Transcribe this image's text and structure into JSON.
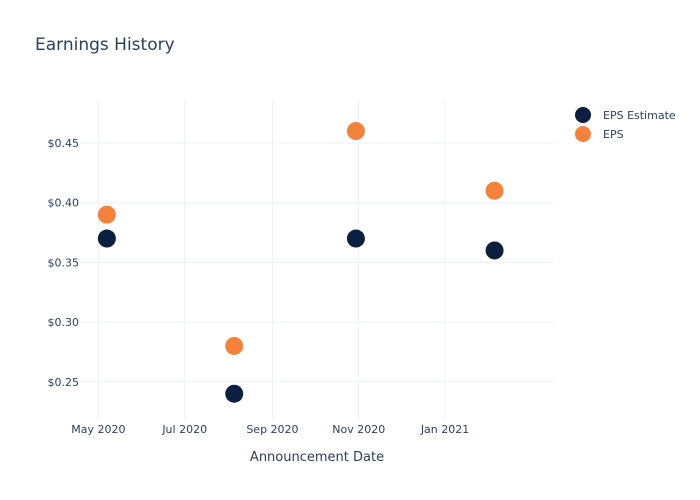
{
  "chart_data": {
    "type": "scatter",
    "title": "Earnings History",
    "xlabel": "Announcement Date",
    "ylabel": "",
    "x_type": "date",
    "x_ticks": [
      "2020-05-01",
      "2020-07-01",
      "2020-09-01",
      "2020-11-01",
      "2021-01-01"
    ],
    "x_tick_labels": [
      "May 2020",
      "Jul 2020",
      "Sep 2020",
      "Nov 2020",
      "Jan 2021"
    ],
    "xlim": [
      "2020-04-18",
      "2021-03-19"
    ],
    "y_ticks": [
      0.25,
      0.3,
      0.35,
      0.4,
      0.45
    ],
    "y_tick_labels": [
      "$0.25",
      "$0.30",
      "$0.35",
      "$0.40",
      "$0.45"
    ],
    "ylim": [
      0.218,
      0.486
    ],
    "grid": true,
    "legend_position": "top-right",
    "series": [
      {
        "name": "EPS Estimate",
        "color": "#0b1f3f",
        "points": [
          {
            "x": "2020-05-07",
            "y": 0.37
          },
          {
            "x": "2020-08-05",
            "y": 0.24
          },
          {
            "x": "2020-10-30",
            "y": 0.37
          },
          {
            "x": "2021-02-05",
            "y": 0.36
          }
        ]
      },
      {
        "name": "EPS",
        "color": "#f5823a",
        "points": [
          {
            "x": "2020-05-07",
            "y": 0.39
          },
          {
            "x": "2020-08-05",
            "y": 0.28
          },
          {
            "x": "2020-10-30",
            "y": 0.46
          },
          {
            "x": "2021-02-05",
            "y": 0.41
          }
        ]
      }
    ]
  }
}
